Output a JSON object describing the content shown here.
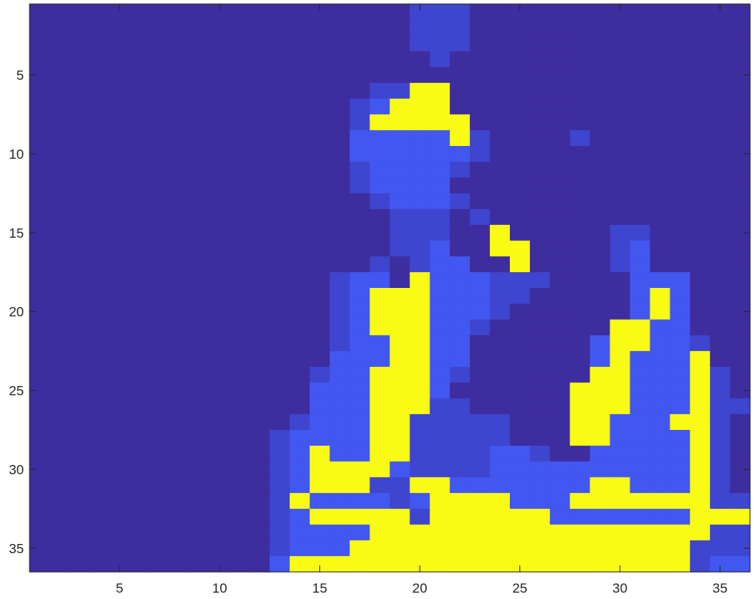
{
  "chart_data": {
    "type": "heatmap",
    "title": "",
    "xlabel": "",
    "ylabel": "",
    "xlim": [
      0.5,
      36.5
    ],
    "ylim": [
      0.5,
      36.5
    ],
    "y_direction": "reverse",
    "grid": false,
    "legend": "none",
    "colormap": "parula",
    "clim": [
      0,
      3
    ],
    "xticks": [
      5,
      10,
      15,
      20,
      25,
      30,
      35
    ],
    "yticks": [
      5,
      10,
      15,
      20,
      25,
      30,
      35
    ],
    "xtick_labels": [
      "5",
      "10",
      "15",
      "20",
      "25",
      "30",
      "35"
    ],
    "ytick_labels": [
      "5",
      "10",
      "15",
      "20",
      "25",
      "30",
      "35"
    ],
    "rows": [
      "000000000000000000011100000000000000",
      "000000000000000000011100000000000000",
      "000000000000000000011100000000000000",
      "000000000000000000001000000000000000",
      "000000000000000000000000000000000000",
      "000000000000000001133000000000000000",
      "000000000000000012333000000000000000",
      "000000000000000013333300000000000000",
      "000000000000000022222310000100000000",
      "000000000000000022222210000000000000",
      "000000000000000012222100000000000000",
      "000000000000000012222000000000000000",
      "000000000000000001222100000000000000",
      "000000000000000000111010000000000000",
      "000000000000000000111003000001100000",
      "000000000000000000112003300001200000",
      "000000000000000001012200300001200000",
      "000000000000000122032221110000222000",
      "000000000000000123332221100000232000",
      "000000000000000123332221000000232000",
      "000000000000000123332210000003322000",
      "000000000000000122332200000023322100",
      "000000000000000222332200000023222300",
      "000000000000001223332100000033222310",
      "000000000000002223332000000333222310",
      "000000000000002223331100000333222311",
      "000000000000012223311111000332223310",
      "000000000000122223311111000332222310",
      "000000000000123223311112210022222310",
      "000000000000123333211112222222222310",
      "000000000000123331133222222233222310",
      "000000000000132222123333222333333311",
      "000000000000123333313333332222222333",
      "000000000000122223333333333333333311",
      "000000000000122233333333333333333111",
      "000000000000233333333333333333333122"
    ]
  }
}
